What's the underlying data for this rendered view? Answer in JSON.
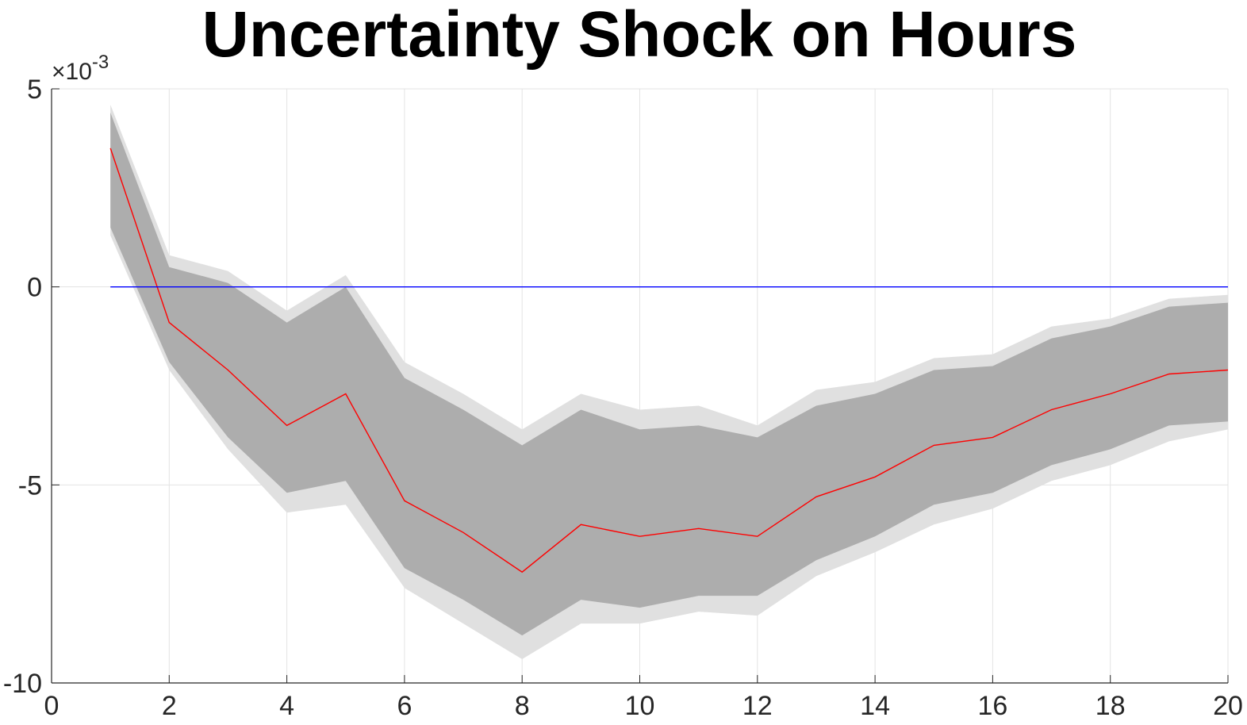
{
  "chart_data": {
    "type": "line",
    "title": "Uncertainty Shock on Hours",
    "xlabel": "",
    "ylabel": "",
    "xlim": [
      0,
      20
    ],
    "ylim": [
      -0.01,
      0.005
    ],
    "x_ticks": [
      0,
      2,
      4,
      6,
      8,
      10,
      12,
      14,
      16,
      18,
      20
    ],
    "x_tick_labels": [
      "0",
      "2",
      "4",
      "6",
      "8",
      "10",
      "12",
      "14",
      "16",
      "18",
      "20"
    ],
    "y_ticks": [
      0.005,
      0,
      -0.005,
      -0.01
    ],
    "y_tick_labels": [
      "5",
      "0",
      "-5",
      "-10"
    ],
    "y_exponent_label": {
      "base": "×10",
      "exponent": "-3"
    },
    "grid": true,
    "x": [
      1,
      2,
      3,
      4,
      5,
      6,
      7,
      8,
      9,
      10,
      11,
      12,
      13,
      14,
      15,
      16,
      17,
      18,
      19,
      20
    ],
    "series": [
      {
        "role": "median",
        "color": "#ff0000",
        "values": [
          0.0035,
          -0.0009,
          -0.0021,
          -0.0035,
          -0.0027,
          -0.0054,
          -0.0062,
          -0.0072,
          -0.006,
          -0.0063,
          -0.0061,
          -0.0063,
          -0.0053,
          -0.0048,
          -0.004,
          -0.0038,
          -0.0031,
          -0.0027,
          -0.0022,
          -0.0021
        ]
      },
      {
        "role": "zero-line",
        "color": "#0000ff",
        "values": [
          0,
          0,
          0,
          0,
          0,
          0,
          0,
          0,
          0,
          0,
          0,
          0,
          0,
          0,
          0,
          0,
          0,
          0,
          0,
          0
        ]
      }
    ],
    "bands": [
      {
        "role": "outer",
        "color": "#e0e0e0",
        "upper": [
          0.0046,
          0.0008,
          0.0004,
          -0.0006,
          0.0003,
          -0.0019,
          -0.0027,
          -0.0036,
          -0.0027,
          -0.0031,
          -0.003,
          -0.0035,
          -0.0026,
          -0.0024,
          -0.0018,
          -0.0017,
          -0.001,
          -0.0008,
          -0.0003,
          -0.0002
        ],
        "lower": [
          0.0013,
          -0.0021,
          -0.0041,
          -0.0057,
          -0.0055,
          -0.0076,
          -0.0085,
          -0.0094,
          -0.0085,
          -0.0085,
          -0.0082,
          -0.0083,
          -0.0073,
          -0.0067,
          -0.006,
          -0.0056,
          -0.0049,
          -0.0045,
          -0.0039,
          -0.0036
        ]
      },
      {
        "role": "inner",
        "color": "#adadad",
        "upper": [
          0.0044,
          0.0005,
          0.0001,
          -0.0009,
          0.0,
          -0.0023,
          -0.0031,
          -0.004,
          -0.0031,
          -0.0036,
          -0.0035,
          -0.0038,
          -0.003,
          -0.0027,
          -0.0021,
          -0.002,
          -0.0013,
          -0.001,
          -0.0005,
          -0.0004
        ],
        "lower": [
          0.0015,
          -0.0019,
          -0.0038,
          -0.0052,
          -0.0049,
          -0.0071,
          -0.0079,
          -0.0088,
          -0.0079,
          -0.0081,
          -0.0078,
          -0.0078,
          -0.0069,
          -0.0063,
          -0.0055,
          -0.0052,
          -0.0045,
          -0.0041,
          -0.0035,
          -0.0034
        ]
      }
    ]
  }
}
